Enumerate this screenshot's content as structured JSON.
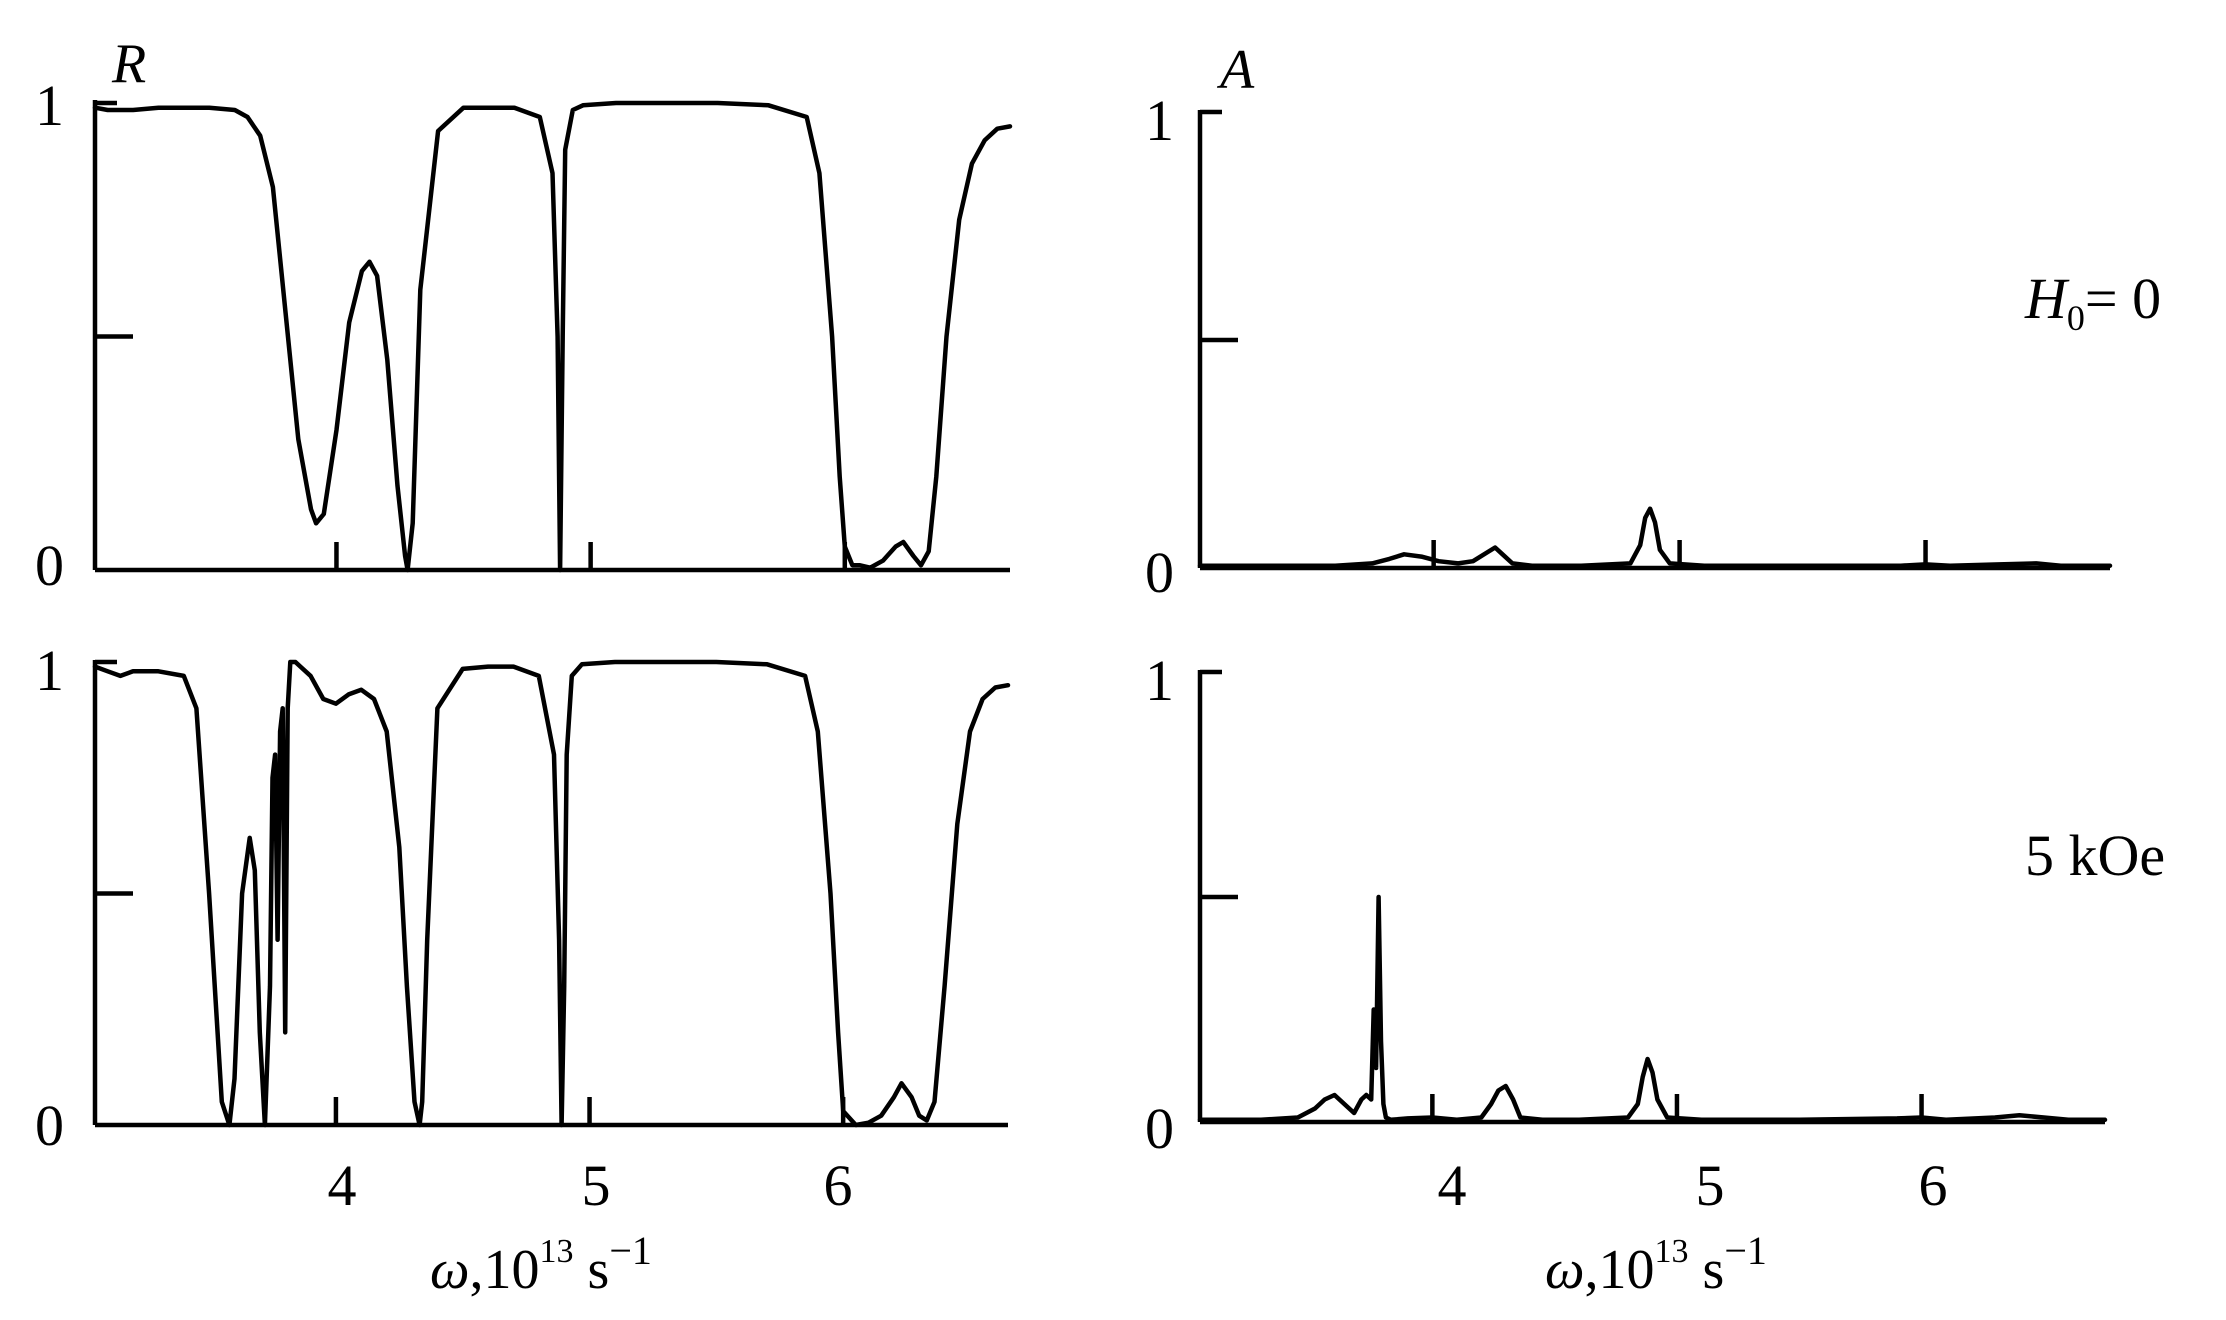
{
  "chart_data": [
    {
      "id": "R_H0",
      "type": "line",
      "ylabel": "R",
      "xlim": [
        3.05,
        6.65
      ],
      "ylim": [
        0,
        1
      ],
      "yticks": [
        0,
        0.5,
        1
      ],
      "ytick_labels": [
        "0",
        "",
        "1"
      ],
      "xticks": [
        4,
        5,
        6
      ],
      "xtick_labels": [],
      "series": [
        {
          "x": [
            3.05,
            3.1,
            3.2,
            3.3,
            3.4,
            3.5,
            3.6,
            3.65,
            3.7,
            3.75,
            3.8,
            3.85,
            3.9,
            3.92,
            3.95,
            4.0,
            4.05,
            4.1,
            4.13,
            4.16,
            4.2,
            4.24,
            4.27,
            4.28,
            4.3,
            4.33,
            4.4,
            4.5,
            4.6,
            4.7,
            4.8,
            4.85,
            4.87,
            4.88,
            4.89,
            4.9,
            4.93,
            4.97,
            5.1,
            5.3,
            5.5,
            5.7,
            5.85,
            5.9,
            5.95,
            5.98,
            6.0,
            6.03,
            6.06,
            6.1,
            6.15,
            6.2,
            6.23,
            6.27,
            6.3,
            6.33,
            6.36,
            6.4,
            6.45,
            6.5,
            6.55,
            6.6,
            6.65
          ],
          "y": [
            0.99,
            0.985,
            0.985,
            0.99,
            0.99,
            0.99,
            0.985,
            0.97,
            0.93,
            0.82,
            0.55,
            0.28,
            0.13,
            0.1,
            0.12,
            0.3,
            0.53,
            0.64,
            0.66,
            0.63,
            0.45,
            0.18,
            0.03,
            0.0,
            0.1,
            0.6,
            0.94,
            0.99,
            0.99,
            0.99,
            0.97,
            0.85,
            0.5,
            0.0,
            0.5,
            0.9,
            0.985,
            0.995,
            1.0,
            1.0,
            1.0,
            0.995,
            0.97,
            0.85,
            0.5,
            0.2,
            0.05,
            0.01,
            0.01,
            0.005,
            0.02,
            0.05,
            0.06,
            0.03,
            0.01,
            0.04,
            0.2,
            0.5,
            0.75,
            0.87,
            0.92,
            0.945,
            0.95
          ]
        }
      ]
    },
    {
      "id": "A_H0",
      "type": "line",
      "ylabel": "A",
      "xlim": [
        3.05,
        6.75
      ],
      "ylim": [
        0,
        1
      ],
      "yticks": [
        0,
        0.5,
        1
      ],
      "ytick_labels": [
        "0",
        "",
        "1"
      ],
      "xticks": [
        4,
        5,
        6
      ],
      "xtick_labels": [],
      "series": [
        {
          "x": [
            3.05,
            3.3,
            3.6,
            3.75,
            3.82,
            3.88,
            3.95,
            4.02,
            4.1,
            4.16,
            4.22,
            4.25,
            4.28,
            4.32,
            4.4,
            4.6,
            4.8,
            4.84,
            4.86,
            4.88,
            4.9,
            4.92,
            4.96,
            5.1,
            5.5,
            5.9,
            6.0,
            6.1,
            6.3,
            6.45,
            6.55,
            6.75
          ],
          "y": [
            0.005,
            0.005,
            0.005,
            0.01,
            0.02,
            0.03,
            0.025,
            0.015,
            0.01,
            0.015,
            0.035,
            0.045,
            0.03,
            0.01,
            0.005,
            0.005,
            0.01,
            0.05,
            0.11,
            0.13,
            0.1,
            0.04,
            0.01,
            0.005,
            0.005,
            0.005,
            0.008,
            0.005,
            0.008,
            0.01,
            0.005,
            0.005
          ]
        }
      ]
    },
    {
      "id": "R_5kOe",
      "type": "line",
      "ylabel": "",
      "xlim": [
        3.05,
        6.65
      ],
      "ylim": [
        0,
        1
      ],
      "yticks": [
        0,
        0.5,
        1
      ],
      "ytick_labels": [
        "0",
        "",
        "1"
      ],
      "xticks": [
        4,
        5,
        6
      ],
      "xtick_labels": [
        "4",
        "5",
        "6"
      ],
      "series": [
        {
          "x": [
            3.05,
            3.1,
            3.15,
            3.2,
            3.3,
            3.4,
            3.45,
            3.5,
            3.55,
            3.58,
            3.6,
            3.63,
            3.66,
            3.68,
            3.7,
            3.72,
            3.74,
            3.75,
            3.76,
            3.77,
            3.78,
            3.79,
            3.8,
            3.81,
            3.82,
            3.84,
            3.86,
            3.9,
            3.95,
            4.0,
            4.05,
            4.1,
            4.15,
            4.2,
            4.25,
            4.28,
            4.31,
            4.33,
            4.34,
            4.36,
            4.4,
            4.5,
            4.6,
            4.7,
            4.8,
            4.86,
            4.88,
            4.89,
            4.9,
            4.91,
            4.93,
            4.97,
            5.1,
            5.3,
            5.5,
            5.7,
            5.85,
            5.9,
            5.95,
            5.98,
            6.0,
            6.05,
            6.1,
            6.15,
            6.2,
            6.23,
            6.27,
            6.3,
            6.33,
            6.36,
            6.4,
            6.45,
            6.5,
            6.55,
            6.6,
            6.65
          ],
          "y": [
            0.99,
            0.98,
            0.97,
            0.98,
            0.98,
            0.97,
            0.9,
            0.5,
            0.05,
            0.0,
            0.1,
            0.5,
            0.62,
            0.55,
            0.2,
            0.0,
            0.3,
            0.75,
            0.8,
            0.4,
            0.85,
            0.9,
            0.2,
            0.9,
            1.0,
            1.0,
            0.99,
            0.97,
            0.92,
            0.91,
            0.93,
            0.94,
            0.92,
            0.85,
            0.6,
            0.3,
            0.05,
            0.0,
            0.05,
            0.4,
            0.9,
            0.985,
            0.99,
            0.99,
            0.97,
            0.8,
            0.4,
            0.0,
            0.3,
            0.8,
            0.97,
            0.995,
            1.0,
            1.0,
            1.0,
            0.995,
            0.97,
            0.85,
            0.5,
            0.2,
            0.03,
            0.0,
            0.005,
            0.02,
            0.06,
            0.09,
            0.06,
            0.02,
            0.01,
            0.05,
            0.3,
            0.65,
            0.85,
            0.92,
            0.945,
            0.95
          ]
        }
      ]
    },
    {
      "id": "A_5kOe",
      "type": "line",
      "ylabel": "",
      "xlim": [
        3.05,
        6.75
      ],
      "ylim": [
        0,
        1
      ],
      "yticks": [
        0,
        0.5,
        1
      ],
      "ytick_labels": [
        "0",
        "",
        "1"
      ],
      "xticks": [
        4,
        5,
        6
      ],
      "xtick_labels": [
        "4",
        "5",
        "6"
      ],
      "series": [
        {
          "x": [
            3.05,
            3.3,
            3.45,
            3.52,
            3.56,
            3.6,
            3.64,
            3.68,
            3.71,
            3.73,
            3.75,
            3.76,
            3.77,
            3.78,
            3.79,
            3.8,
            3.81,
            3.83,
            3.9,
            4.0,
            4.1,
            4.2,
            4.24,
            4.27,
            4.3,
            4.33,
            4.36,
            4.45,
            4.6,
            4.8,
            4.84,
            4.86,
            4.88,
            4.9,
            4.92,
            4.96,
            5.1,
            5.5,
            5.9,
            6.0,
            6.1,
            6.3,
            6.4,
            6.5,
            6.6,
            6.75
          ],
          "y": [
            0.005,
            0.005,
            0.01,
            0.03,
            0.05,
            0.06,
            0.04,
            0.02,
            0.05,
            0.06,
            0.05,
            0.25,
            0.12,
            0.5,
            0.18,
            0.04,
            0.01,
            0.005,
            0.008,
            0.01,
            0.005,
            0.01,
            0.04,
            0.07,
            0.08,
            0.05,
            0.01,
            0.005,
            0.005,
            0.01,
            0.04,
            0.1,
            0.14,
            0.11,
            0.05,
            0.01,
            0.005,
            0.005,
            0.008,
            0.01,
            0.005,
            0.01,
            0.015,
            0.01,
            0.005,
            0.005
          ]
        }
      ]
    }
  ],
  "annotations": {
    "h0_prefix": "H",
    "h0_sub": "0",
    "h0_suffix": "= 0",
    "field": "5 kOe"
  },
  "xlabel": {
    "omega": "ω",
    "mid": ",10",
    "exp": "13",
    "unit": " s",
    "unit_exp": "−1"
  }
}
